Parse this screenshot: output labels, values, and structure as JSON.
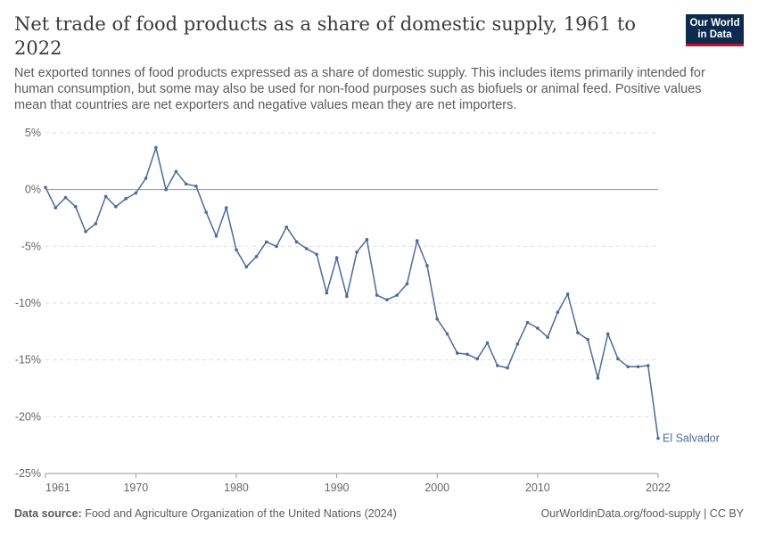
{
  "header": {
    "title": "Net trade of food products as a share of domestic supply, 1961 to 2022",
    "subtitle": "Net exported tonnes of food products expressed as a share of domestic supply. This includes items primarily intended for human consumption, but some may also be used for non-food purposes such as biofuels or animal feed. Positive values mean that countries are net exporters and negative values mean they are net importers.",
    "logo_line1": "Our World",
    "logo_line2": "in Data"
  },
  "footer": {
    "source_label": "Data source:",
    "source_text": "Food and Agriculture Organization of the United Nations (2024)",
    "credit": "OurWorldinData.org/food-supply | CC BY"
  },
  "colors": {
    "series": "#4c6a9c",
    "zero_line": "#999999",
    "grid": "#dddddd",
    "logo_bg": "#0d2b4f",
    "logo_accent": "#c8102e"
  },
  "chart_data": {
    "type": "line",
    "title": "Net trade of food products as a share of domestic supply, 1961 to 2022",
    "xlabel": "",
    "ylabel": "",
    "xlim": [
      1961,
      2022
    ],
    "ylim": [
      -25,
      5
    ],
    "x_ticks": [
      1961,
      1970,
      1980,
      1990,
      2000,
      2010,
      2022
    ],
    "y_ticks": [
      5,
      0,
      -5,
      -10,
      -15,
      -20,
      -25
    ],
    "y_tick_labels": [
      "5%",
      "0%",
      "-5%",
      "-10%",
      "-15%",
      "-20%",
      "-25%"
    ],
    "grid": "horizontal dashed",
    "legend": "end-of-line label",
    "series": [
      {
        "name": "El Salvador",
        "x": [
          1961,
          1962,
          1963,
          1964,
          1965,
          1966,
          1967,
          1968,
          1969,
          1970,
          1971,
          1972,
          1973,
          1974,
          1975,
          1976,
          1977,
          1978,
          1979,
          1980,
          1981,
          1982,
          1983,
          1984,
          1985,
          1986,
          1987,
          1988,
          1989,
          1990,
          1991,
          1992,
          1993,
          1994,
          1995,
          1996,
          1997,
          1998,
          1999,
          2000,
          2001,
          2002,
          2003,
          2004,
          2005,
          2006,
          2007,
          2008,
          2009,
          2010,
          2011,
          2012,
          2013,
          2014,
          2015,
          2016,
          2017,
          2018,
          2019,
          2020,
          2021,
          2022
        ],
        "values": [
          0.2,
          -1.6,
          -0.7,
          -1.5,
          -3.7,
          -3.0,
          -0.6,
          -1.5,
          -0.8,
          -0.3,
          1.0,
          3.7,
          0.0,
          1.6,
          0.5,
          0.3,
          -2.0,
          -4.1,
          -1.6,
          -5.3,
          -6.8,
          -5.9,
          -4.6,
          -5.0,
          -3.3,
          -4.6,
          -5.2,
          -5.7,
          -9.1,
          -6.0,
          -9.4,
          -5.5,
          -4.4,
          -9.3,
          -9.7,
          -9.3,
          -8.3,
          -4.5,
          -6.7,
          -11.4,
          -12.7,
          -14.4,
          -14.5,
          -14.9,
          -13.5,
          -15.5,
          -15.7,
          -13.6,
          -11.7,
          -12.2,
          -13.0,
          -10.8,
          -9.2,
          -12.6,
          -13.2,
          -16.6,
          -12.7,
          -14.9,
          -15.6,
          -15.6,
          -15.5,
          -21.9
        ]
      }
    ]
  }
}
